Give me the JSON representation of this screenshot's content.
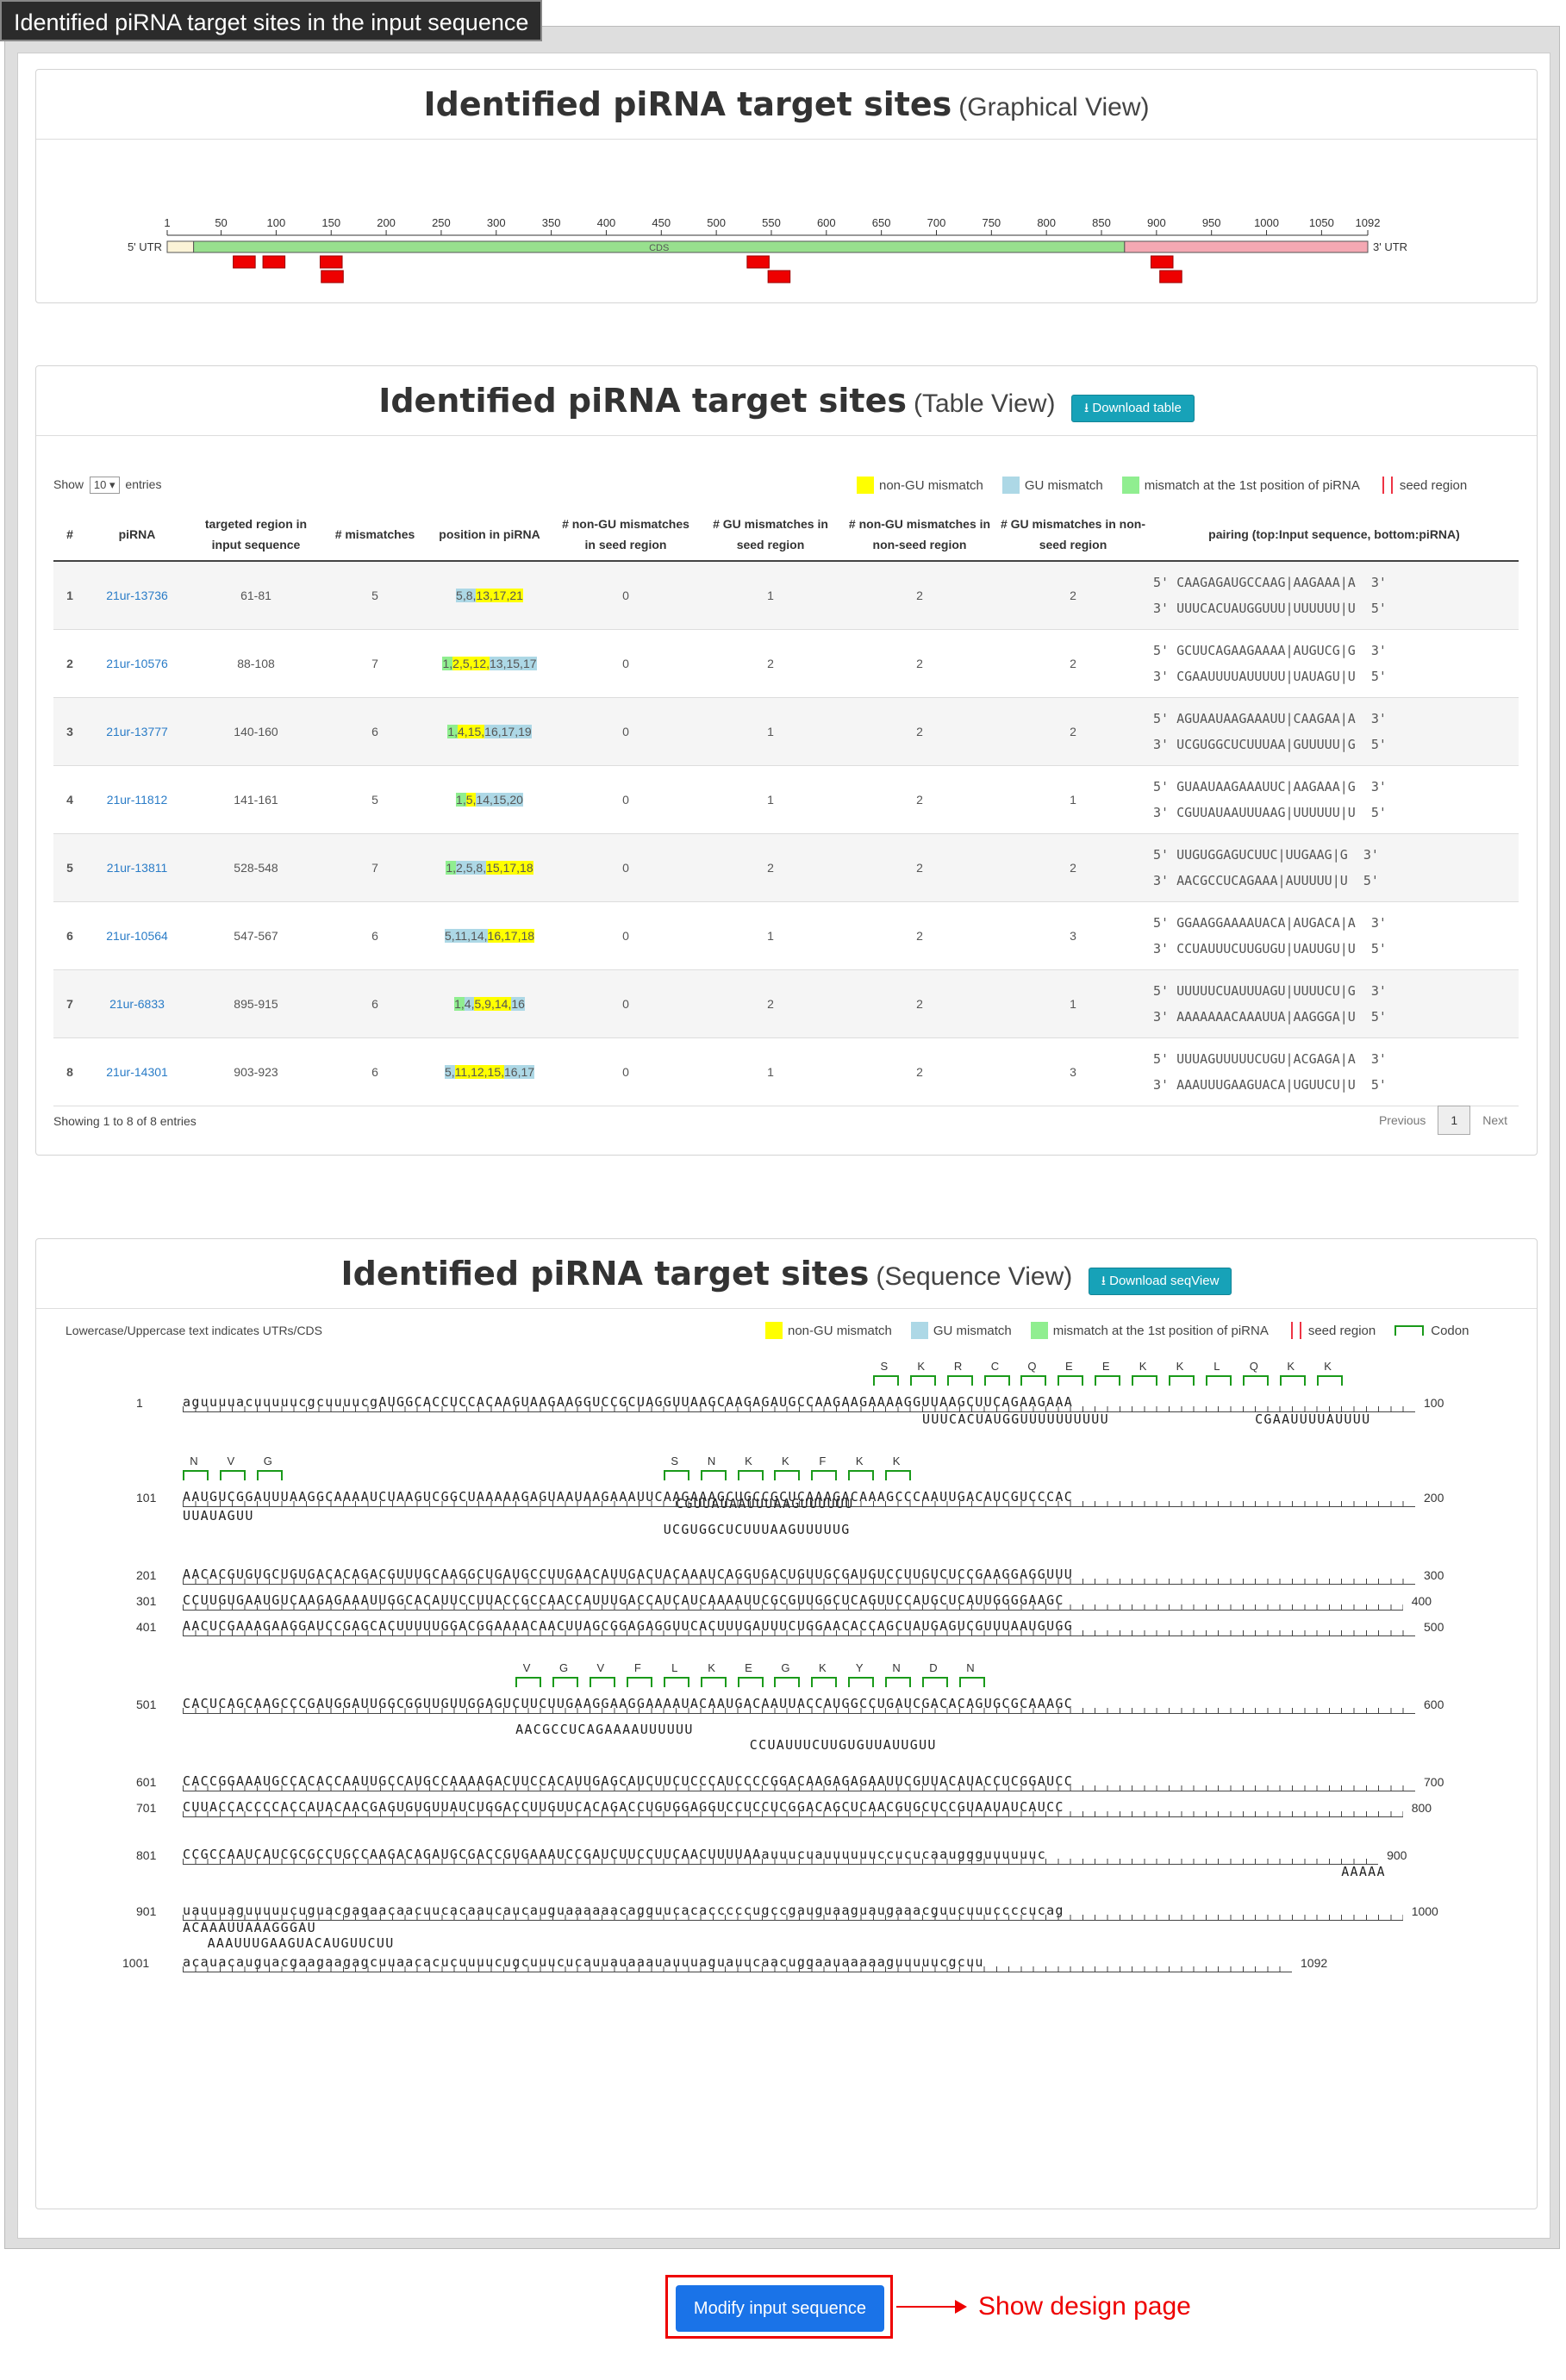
{
  "window_title": "Identified piRNA target sites in the input sequence",
  "graphical": {
    "title": "Identified piRNA target sites",
    "subtitle": "(Graphical View)",
    "axis_ticks": [
      "1",
      "50",
      "100",
      "150",
      "200",
      "250",
      "300",
      "350",
      "400",
      "450",
      "500",
      "550",
      "600",
      "650",
      "700",
      "750",
      "800",
      "850",
      "900",
      "950",
      "1000",
      "1050",
      "1092"
    ],
    "label_5utr": "5' UTR",
    "label_cds": "CDS",
    "label_3utr": "3' UTR",
    "seq_length": 1092,
    "utr5_end": 25,
    "cds_end": 871,
    "sites": [
      [
        61,
        81
      ],
      [
        88,
        108
      ],
      [
        140,
        160
      ],
      [
        141,
        161
      ],
      [
        528,
        548
      ],
      [
        547,
        567
      ],
      [
        895,
        915
      ],
      [
        903,
        923
      ]
    ]
  },
  "table": {
    "title": "Identified piRNA target sites",
    "subtitle": "(Table View)",
    "download_label": "Download table",
    "show_label": "Show",
    "entries_select": "10",
    "entries_label": "entries",
    "legend": {
      "nongu": "non-GU mismatch",
      "gu": "GU mismatch",
      "first": "mismatch at the 1st position of piRNA",
      "seed": "seed region"
    },
    "headers": [
      "#",
      "piRNA",
      "targeted region in input sequence",
      "# mismatches",
      "position in piRNA",
      "# non-GU mismatches in seed region",
      "# GU mismatches in seed region",
      "# non-GU mismatches in non-seed region",
      "# GU mismatches in non-seed region",
      "pairing (top:Input sequence, bottom:piRNA)"
    ],
    "rows": [
      {
        "n": "1",
        "pirna": "21ur-13736",
        "region": "61-81",
        "mm": "5",
        "pos": "5,8,13,17,21",
        "a": "0",
        "b": "1",
        "c": "2",
        "d": "2",
        "top": "5' CAAGAGAUGCCAAG|AAGAAA|A  3'",
        "bot": "3' UUUCACUAUGGUUU|UUUUUU|U  5'"
      },
      {
        "n": "2",
        "pirna": "21ur-10576",
        "region": "88-108",
        "mm": "7",
        "pos": "1,2,5,12,13,15,17",
        "a": "0",
        "b": "2",
        "c": "2",
        "d": "2",
        "top": "5' GCUUCAGAAGAAAA|AUGUCG|G  3'",
        "bot": "3' CGAAUUUUAUUUUU|UAUAGU|U  5'"
      },
      {
        "n": "3",
        "pirna": "21ur-13777",
        "region": "140-160",
        "mm": "6",
        "pos": "1,4,15,16,17,19",
        "a": "0",
        "b": "1",
        "c": "2",
        "d": "2",
        "top": "5' AGUAAUAAGAAAUU|CAAGAA|A  3'",
        "bot": "3' UCGUGGCUCUUUAA|GUUUUU|G  5'"
      },
      {
        "n": "4",
        "pirna": "21ur-11812",
        "region": "141-161",
        "mm": "5",
        "pos": "1,5,14,15,20",
        "a": "0",
        "b": "1",
        "c": "2",
        "d": "1",
        "top": "5' GUAAUAAGAAAUUC|AAGAAA|G  3'",
        "bot": "3' CGUUAUAAUUUAAG|UUUUUU|U  5'"
      },
      {
        "n": "5",
        "pirna": "21ur-13811",
        "region": "528-548",
        "mm": "7",
        "pos": "1,2,5,8,15,17,18",
        "a": "0",
        "b": "2",
        "c": "2",
        "d": "2",
        "top": "5' UUGUGGAGUCUUC|UUGAAG|G  3'",
        "bot": "3' AACGCCUCAGAAA|AUUUUU|U  5'"
      },
      {
        "n": "6",
        "pirna": "21ur-10564",
        "region": "547-567",
        "mm": "6",
        "pos": "5,11,14,16,17,18",
        "a": "0",
        "b": "1",
        "c": "2",
        "d": "3",
        "top": "5' GGAAGGAAAAUACA|AUGACA|A  3'",
        "bot": "3' CCUAUUUCUUGUGU|UAUUGU|U  5'"
      },
      {
        "n": "7",
        "pirna": "21ur-6833",
        "region": "895-915",
        "mm": "6",
        "pos": "1,4,5,9,14,16",
        "a": "0",
        "b": "2",
        "c": "2",
        "d": "1",
        "top": "5' UUUUUCUAUUUAGU|UUUUCU|G  3'",
        "bot": "3' AAAAAAACAAAUUA|AAGGGA|U  5'"
      },
      {
        "n": "8",
        "pirna": "21ur-14301",
        "region": "903-923",
        "mm": "6",
        "pos": "5,11,12,15,16,17",
        "a": "0",
        "b": "1",
        "c": "2",
        "d": "3",
        "top": "5' UUUAGUUUUUCUGU|ACGAGA|A  3'",
        "bot": "3' AAAUUUGAAGUACA|UGUUCU|U  5'"
      }
    ],
    "showing": "Showing 1 to 8 of 8 entries",
    "prev": "Previous",
    "page": "1",
    "next": "Next"
  },
  "sequence": {
    "title": "Identified piRNA target sites",
    "subtitle": "(Sequence View)",
    "download_label": "Download seqView",
    "note": "Lowercase/Uppercase text indicates UTRs/CDS",
    "legend_codon": "Codon",
    "lines": [
      {
        "num": "1",
        "end": "100",
        "seq": "aguuuuacuuuuucgcuuuucgAUGGCACCUCCACAAGUAAGAAGGUCCGCUAGGUUAAGCAAGAGAUGCCAAGAAGAAAAGGUUAAGCUUCAGAAGAAA"
      },
      {
        "num": "101",
        "end": "200",
        "seq": "AAUGUCGGAUUUAAGGCAAAAUCUAAGUCGGCUAAAAAGAGUAAUAAGAAAUUCAAGAAAGCUGCCGCUCAAAGACAAAGCCCAAUUGACAUCGUCCCAC"
      },
      {
        "num": "201",
        "end": "300",
        "seq": "AACACGUGUGCUGUGACACAGACGUUUGCAAGGCUGAUGCCUUGAACAUUGACUACAAAUCAGGUGACUGUUGCGAUGUCCUUGUCUCCGAAGGAGGUUU"
      },
      {
        "num": "301",
        "end": "400",
        "seq": "CCUUGUGAAUGUCAAGAGAAAUUGGCACAUUCCUUACCGCCAACCAUUUGACCAUCAUCAAAAUUCGCGUUGGCUCAGUUCCAUGCUCAUUGGGGAAGC"
      },
      {
        "num": "401",
        "end": "500",
        "seq": "AACUCGAAAGAAGGAUCCGAGCACUUUUUGGACGGAAAACAACUUAGCGGAGAGGUUCACUUUGAUUUCUGGAACACCAGCUAUGAGUCGUUUAAUGUGG"
      },
      {
        "num": "501",
        "end": "600",
        "seq": "CACUCAGCAAGCCCGAUGGAUUGGCGGUUGUUGGAGUCUUCUUGAAGGAAGGAAAAUACAAUGACAAUUACCAUGGCCUGAUCGACACAGUGCGCAAAGC"
      },
      {
        "num": "601",
        "end": "700",
        "seq": "CACCGGAAAUGCCACACCAAUUGCCAUGCCAAAAGACUUCCACAUUGAGCAUCUUCUCCCAUCCCCGGACAAGAGAGAAUUCGUUACAUACCUCGGAUCC"
      },
      {
        "num": "701",
        "end": "800",
        "seq": "CUUACCACCCCACCAUACAACGAGUGUGUUAUCUGGACCUUGUUCACAGACCUGUGGAGGUCCUCCUCGGACAGCUCAACGUGCUCCGUAAUAUCAUCC"
      },
      {
        "num": "801",
        "end": "900",
        "seq": "CCGCCAAUCAUCGCGCCUGCCAAGACAGAUGCGACCGUGAAAUCCGAUCUUCCUUCAACUUUUAAauuucuauuuuuuccucucaauggguuuuuuc"
      },
      {
        "num": "901",
        "end": "1000",
        "seq": "uauuuaguuuuucuguacgagaacaacuucacaaucaucauguaaaaaacagguucacacccccugccgauguaaguaugaaacguucuuuccccucag"
      },
      {
        "num": "1001",
        "end": "1092",
        "seq": "acauacauguacgaagaagagcuuaacacucuuuucugcuuucucauuauaaauauuuaguauucaacuggaauaaaaaguuuuucgcuu"
      }
    ],
    "pirna_lines": [
      {
        "text": "UUUCACUAUGGUUUUUUUUUU",
        "offset": 60
      },
      {
        "text": "CGAAUUUUAUUUU",
        "offset": 87
      },
      {
        "text": "UUAUAGUU",
        "offset": 0
      },
      {
        "text": "UCGUGGCUCUUUAAGUUUUUG",
        "offset": 39
      },
      {
        "text": "CGUUAUAAUUUAAGUUUUUU",
        "offset": 40
      },
      {
        "text": "AACGCCUCAGAAAAUUUUUU",
        "offset": 27
      },
      {
        "text": "CCUAUUUCUUGUGUUAUUGUU",
        "offset": 46
      },
      {
        "text": "AAAAA",
        "offset": 94
      },
      {
        "text": "ACAAAUUAAAGGGAU",
        "offset": 0
      },
      {
        "text": "AAAUUUGAAGUACAUGUUCUU",
        "offset": 2
      }
    ],
    "codons_line1": [
      "S",
      "K",
      "R",
      "C",
      "Q",
      "E",
      "E",
      "K",
      "K",
      "L",
      "Q",
      "K",
      "K"
    ],
    "codons_line2a": [
      "N",
      "V",
      "G"
    ],
    "codons_line2b": [
      "S",
      "N",
      "K",
      "K",
      "F",
      "K",
      "K"
    ],
    "codons_line6": [
      "V",
      "G",
      "V",
      "F",
      "L",
      "K",
      "E",
      "G",
      "K",
      "Y",
      "N",
      "D",
      "N"
    ]
  },
  "footer": {
    "modify_button": "Modify input sequence",
    "design_label": "Show design page"
  }
}
